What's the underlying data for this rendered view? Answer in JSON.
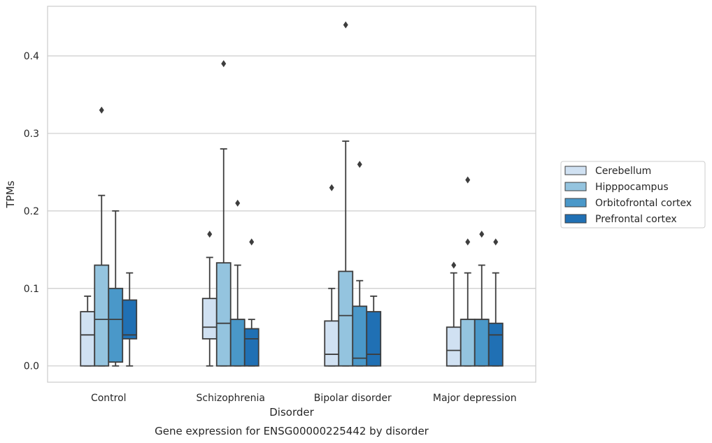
{
  "chart_data": {
    "type": "boxplot",
    "caption": "Gene expression for ENSG00000225442 by disorder",
    "xlabel": "Disorder",
    "ylabel": "TPMs",
    "ylim": [
      -0.021,
      0.464
    ],
    "yticks": [
      0.0,
      0.1,
      0.2,
      0.3,
      0.4
    ],
    "ytick_labels": [
      "0.0",
      "0.1",
      "0.2",
      "0.3",
      "0.4"
    ],
    "grid": "horizontal",
    "legend_position": "right",
    "categories": [
      "Control",
      "Schizophrenia",
      "Bipolar disorder",
      "Major depression"
    ],
    "series": [
      {
        "name": "Cerebellum",
        "color": "#d0e1f2",
        "boxes": [
          {
            "whislo": 0.0,
            "q1": 0.0,
            "med": 0.04,
            "q3": 0.07,
            "whishi": 0.09,
            "fliers": []
          },
          {
            "whislo": 0.0,
            "q1": 0.035,
            "med": 0.05,
            "q3": 0.087,
            "whishi": 0.14,
            "fliers": [
              0.17
            ]
          },
          {
            "whislo": 0.0,
            "q1": 0.0,
            "med": 0.015,
            "q3": 0.058,
            "whishi": 0.1,
            "fliers": [
              0.23
            ]
          },
          {
            "whislo": 0.0,
            "q1": 0.0,
            "med": 0.02,
            "q3": 0.05,
            "whishi": 0.12,
            "fliers": [
              0.13
            ]
          }
        ]
      },
      {
        "name": "Hipppocampus",
        "color": "#94c4df",
        "boxes": [
          {
            "whislo": 0.0,
            "q1": 0.0,
            "med": 0.06,
            "q3": 0.13,
            "whishi": 0.22,
            "fliers": [
              0.33
            ]
          },
          {
            "whislo": 0.0,
            "q1": 0.0,
            "med": 0.055,
            "q3": 0.133,
            "whishi": 0.28,
            "fliers": [
              0.39
            ]
          },
          {
            "whislo": 0.0,
            "q1": 0.0,
            "med": 0.065,
            "q3": 0.122,
            "whishi": 0.29,
            "fliers": [
              0.44
            ]
          },
          {
            "whislo": 0.0,
            "q1": 0.0,
            "med": 0.06,
            "q3": 0.06,
            "whishi": 0.12,
            "fliers": [
              0.16,
              0.24
            ]
          }
        ]
      },
      {
        "name": "Orbitofrontal cortex",
        "color": "#4a98c9",
        "boxes": [
          {
            "whislo": 0.0,
            "q1": 0.005,
            "med": 0.06,
            "q3": 0.1,
            "whishi": 0.2,
            "fliers": []
          },
          {
            "whislo": 0.0,
            "q1": 0.0,
            "med": 0.06,
            "q3": 0.06,
            "whishi": 0.13,
            "fliers": [
              0.21
            ]
          },
          {
            "whislo": 0.0,
            "q1": 0.0,
            "med": 0.01,
            "q3": 0.077,
            "whishi": 0.11,
            "fliers": [
              0.26
            ]
          },
          {
            "whislo": 0.0,
            "q1": 0.0,
            "med": 0.06,
            "q3": 0.06,
            "whishi": 0.13,
            "fliers": [
              0.17
            ]
          }
        ]
      },
      {
        "name": "Prefrontal cortex",
        "color": "#2070b4",
        "boxes": [
          {
            "whislo": 0.0,
            "q1": 0.035,
            "med": 0.04,
            "q3": 0.085,
            "whishi": 0.12,
            "fliers": []
          },
          {
            "whislo": 0.0,
            "q1": 0.0,
            "med": 0.035,
            "q3": 0.048,
            "whishi": 0.06,
            "fliers": [
              0.16
            ]
          },
          {
            "whislo": 0.0,
            "q1": 0.0,
            "med": 0.015,
            "q3": 0.07,
            "whishi": 0.09,
            "fliers": []
          },
          {
            "whislo": 0.0,
            "q1": 0.0,
            "med": 0.04,
            "q3": 0.055,
            "whishi": 0.12,
            "fliers": [
              0.16
            ]
          }
        ]
      }
    ]
  }
}
